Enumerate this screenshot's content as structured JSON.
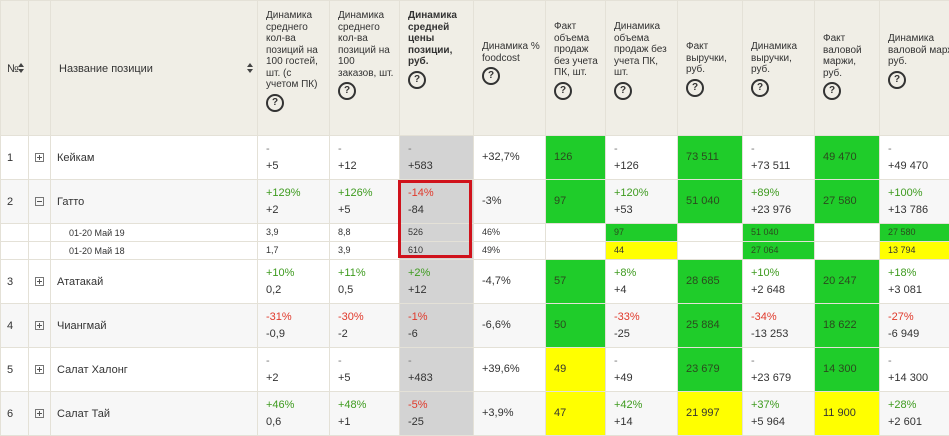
{
  "headers": {
    "no": "№",
    "name": "Название позиции",
    "c1": "Динамика среднего кол-ва позиций на 100 гостей, шт. (с учетом ПК)",
    "c2": "Динамика среднего кол-ва позиций на 100 заказов, шт.",
    "c3": "Динамика средней цены позиции, руб.",
    "c4": "Динамика % foodcost",
    "c5": "Факт объема продаж без учета ПК, шт.",
    "c6": "Динамика объема продаж без учета ПК, шт.",
    "c7": "Факт выручки, руб.",
    "c8": "Динамика выручки, руб.",
    "c9": "Факт валовой маржи, руб.",
    "c10": "Динамика валовой маржи, руб.",
    "help": "?"
  },
  "rows": [
    {
      "no": "1",
      "name": "Кейкам",
      "c1a": "-",
      "c1b": "+5",
      "c2a": "-",
      "c2b": "+12",
      "c3a": "-",
      "c3b": "+583",
      "c4": "+32,7%",
      "c5": "126",
      "c6a": "-",
      "c6b": "+126",
      "c7": "73 511",
      "c8a": "-",
      "c8b": "+73 511",
      "c9": "49 470",
      "c10a": "-",
      "c10b": "+49 470"
    },
    {
      "no": "2",
      "name": "Гатто",
      "c1a": "+129%",
      "c1b": "+2",
      "c2a": "+126%",
      "c2b": "+5",
      "c3a": "-14%",
      "c3b": "-84",
      "c4": "-3%",
      "c5": "97",
      "c6a": "+120%",
      "c6b": "+53",
      "c7": "51 040",
      "c8a": "+89%",
      "c8b": "+23 976",
      "c9": "27 580",
      "c10a": "+100%",
      "c10b": "+13 786"
    },
    {
      "no": "3",
      "name": "Ататакай",
      "c1a": "+10%",
      "c1b": "0,2",
      "c2a": "+11%",
      "c2b": "0,5",
      "c3a": "+2%",
      "c3b": "+12",
      "c4": "-4,7%",
      "c5": "57",
      "c6a": "+8%",
      "c6b": "+4",
      "c7": "28 685",
      "c8a": "+10%",
      "c8b": "+2 648",
      "c9": "20 247",
      "c10a": "+18%",
      "c10b": "+3 081"
    },
    {
      "no": "4",
      "name": "Чиангмай",
      "c1a": "-31%",
      "c1b": "-0,9",
      "c2a": "-30%",
      "c2b": "-2",
      "c3a": "-1%",
      "c3b": "-6",
      "c4": "-6,6%",
      "c5": "50",
      "c6a": "-33%",
      "c6b": "-25",
      "c7": "25 884",
      "c8a": "-34%",
      "c8b": "-13 253",
      "c9": "18 622",
      "c10a": "-27%",
      "c10b": "-6 949"
    },
    {
      "no": "5",
      "name": "Салат Халонг",
      "c1a": "-",
      "c1b": "+2",
      "c2a": "-",
      "c2b": "+5",
      "c3a": "-",
      "c3b": "+483",
      "c4": "+39,6%",
      "c5": "49",
      "c6a": "-",
      "c6b": "+49",
      "c7": "23 679",
      "c8a": "-",
      "c8b": "+23 679",
      "c9": "14 300",
      "c10a": "-",
      "c10b": "+14 300"
    },
    {
      "no": "6",
      "name": "Салат Тай",
      "c1a": "+46%",
      "c1b": "0,6",
      "c2a": "+48%",
      "c2b": "+1",
      "c3a": "-5%",
      "c3b": "-25",
      "c4": "+3,9%",
      "c5": "47",
      "c6a": "+42%",
      "c6b": "+14",
      "c7": "21 997",
      "c8a": "+37%",
      "c8b": "+5 964",
      "c9": "11 900",
      "c10a": "+28%",
      "c10b": "+2 601"
    }
  ],
  "subrows": [
    {
      "label": "01-20 Май 19",
      "c1": "3,9",
      "c2": "8,8",
      "c3": "526",
      "c4": "46%",
      "c5": "97",
      "c7": "51 040",
      "c9": "27 580"
    },
    {
      "label": "01-20 Май 18",
      "c1": "1,7",
      "c2": "3,9",
      "c3": "610",
      "c4": "49%",
      "c5": "44",
      "c7": "27 064",
      "c9": "13 794"
    }
  ],
  "colors": {
    "green": "#1fcc2a",
    "yellow": "#ffff00",
    "highlight": "#d0121b",
    "positive": "#3e9b1f",
    "negative": "#e0392b"
  },
  "icons": {
    "expand": "plus-box-icon",
    "collapse": "minus-box-icon",
    "help": "question-circle-icon",
    "sort": "sort-arrows-icon"
  }
}
